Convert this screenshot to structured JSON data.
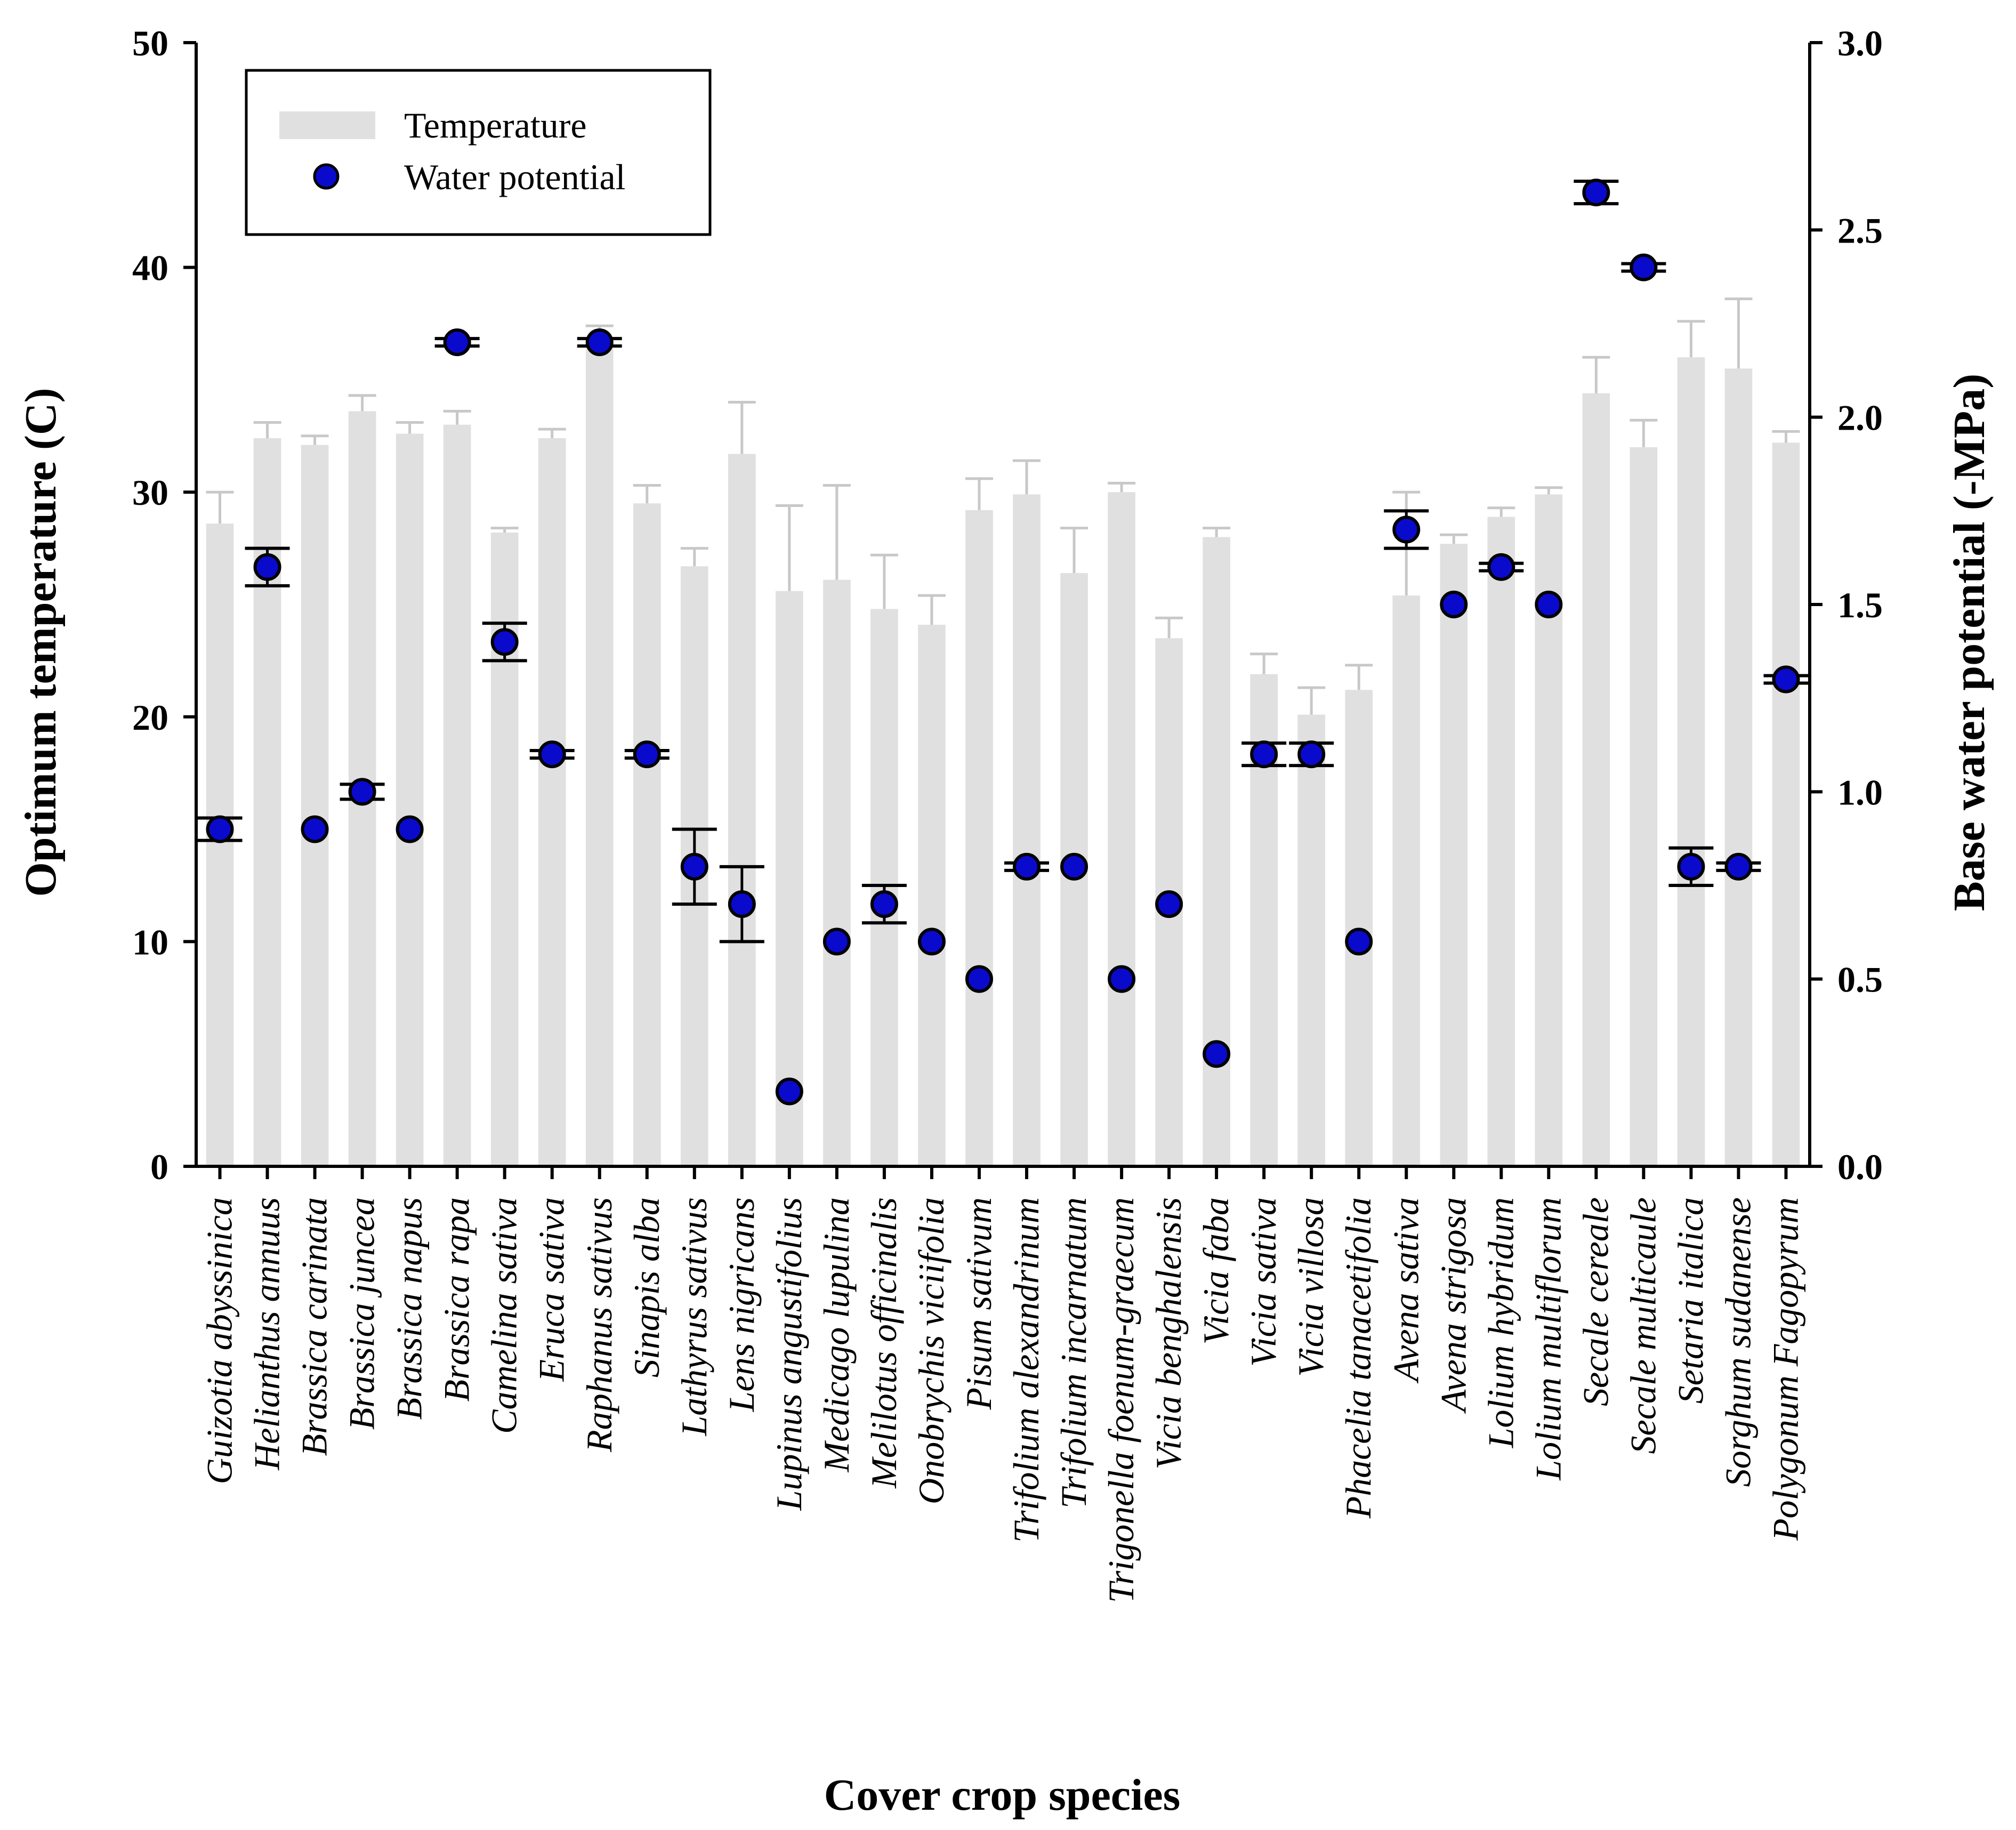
{
  "chart_data": {
    "type": "bar",
    "xlabel": "Cover crop species",
    "ylabel_left": "Optimum temperature (C)",
    "ylabel_right": "Base water potential (-MPa)",
    "ylim_left": [
      0,
      50
    ],
    "ylim_right": [
      0,
      3.0
    ],
    "yticks_left": [
      "0",
      "10",
      "20",
      "30",
      "40",
      "50"
    ],
    "yticks_right": [
      "0.0",
      "0.5",
      "1.0",
      "1.5",
      "2.0",
      "2.5",
      "3.0"
    ],
    "categories": [
      "Guizotia abyssinica",
      "Helianthus annuus",
      "Brassica carinata",
      "Brassica juncea",
      "Brassica napus",
      "Brassica rapa",
      "Camelina sativa",
      "Eruca sativa",
      "Raphanus sativus",
      "Sinapis alba",
      "Lathyrus sativus",
      "Lens nigricans",
      "Lupinus angustifolius",
      "Medicago lupulina",
      "Melilotus officinalis",
      "Onobrychis viciifolia",
      "Pisum sativum",
      "Trifolium alexandrinum",
      "Trifolium incarnatum",
      "Trigonella foenum-graecum",
      "Vicia benghalensis",
      "Vicia faba",
      "Vicia sativa",
      "Vicia villosa",
      "Phacelia tanacetifolia",
      "Avena sativa",
      "Avena strigosa",
      "Lolium hybridum",
      "Lolium multiflorum",
      "Secale cereale",
      "Secale multicaule",
      "Setaria italica",
      "Sorghum sudanense",
      "Polygonum Fagopyrum"
    ],
    "series": [
      {
        "name": "Temperature",
        "axis": "left",
        "color": "#e0e0e0",
        "values": [
          28.6,
          32.4,
          32.1,
          33.6,
          32.6,
          33.0,
          28.2,
          32.4,
          36.9,
          29.5,
          26.7,
          31.7,
          25.6,
          26.1,
          24.8,
          24.1,
          29.2,
          29.9,
          26.4,
          30.0,
          23.5,
          28.0,
          21.9,
          20.1,
          21.2,
          25.4,
          27.7,
          28.9,
          29.9,
          34.4,
          32.0,
          36.0,
          35.5,
          32.2
        ],
        "error_upper": [
          1.4,
          0.7,
          0.4,
          0.7,
          0.5,
          0.6,
          0.2,
          0.4,
          0.5,
          0.8,
          0.8,
          2.3,
          3.8,
          4.2,
          2.4,
          1.3,
          1.4,
          1.5,
          2.0,
          0.4,
          0.9,
          0.4,
          0.9,
          1.2,
          1.1,
          4.6,
          0.4,
          0.4,
          0.3,
          1.6,
          1.2,
          1.6,
          3.1,
          0.5
        ]
      },
      {
        "name": "Water potential",
        "axis": "right",
        "color": "#0a0acd",
        "values": [
          0.9,
          1.6,
          0.9,
          1.0,
          0.9,
          2.2,
          1.4,
          1.1,
          2.2,
          1.1,
          0.8,
          0.7,
          0.2,
          0.6,
          0.7,
          0.6,
          0.5,
          0.8,
          0.8,
          0.5,
          0.7,
          0.3,
          1.1,
          1.1,
          0.6,
          1.7,
          1.5,
          1.6,
          1.5,
          2.6,
          2.4,
          0.8,
          0.8,
          1.3
        ],
        "error": [
          0.03,
          0.05,
          0.0,
          0.02,
          0.0,
          0.01,
          0.05,
          0.01,
          0.01,
          0.01,
          0.1,
          0.1,
          0.0,
          0.0,
          0.05,
          0.0,
          0.0,
          0.01,
          0.0,
          0.0,
          0.0,
          0.0,
          0.03,
          0.03,
          0.0,
          0.05,
          0.0,
          0.01,
          0.0,
          0.03,
          0.01,
          0.05,
          0.01,
          0.01
        ]
      }
    ],
    "legend": {
      "position": "top-left",
      "entries": [
        "Temperature",
        "Water potential"
      ]
    },
    "grid": false
  }
}
